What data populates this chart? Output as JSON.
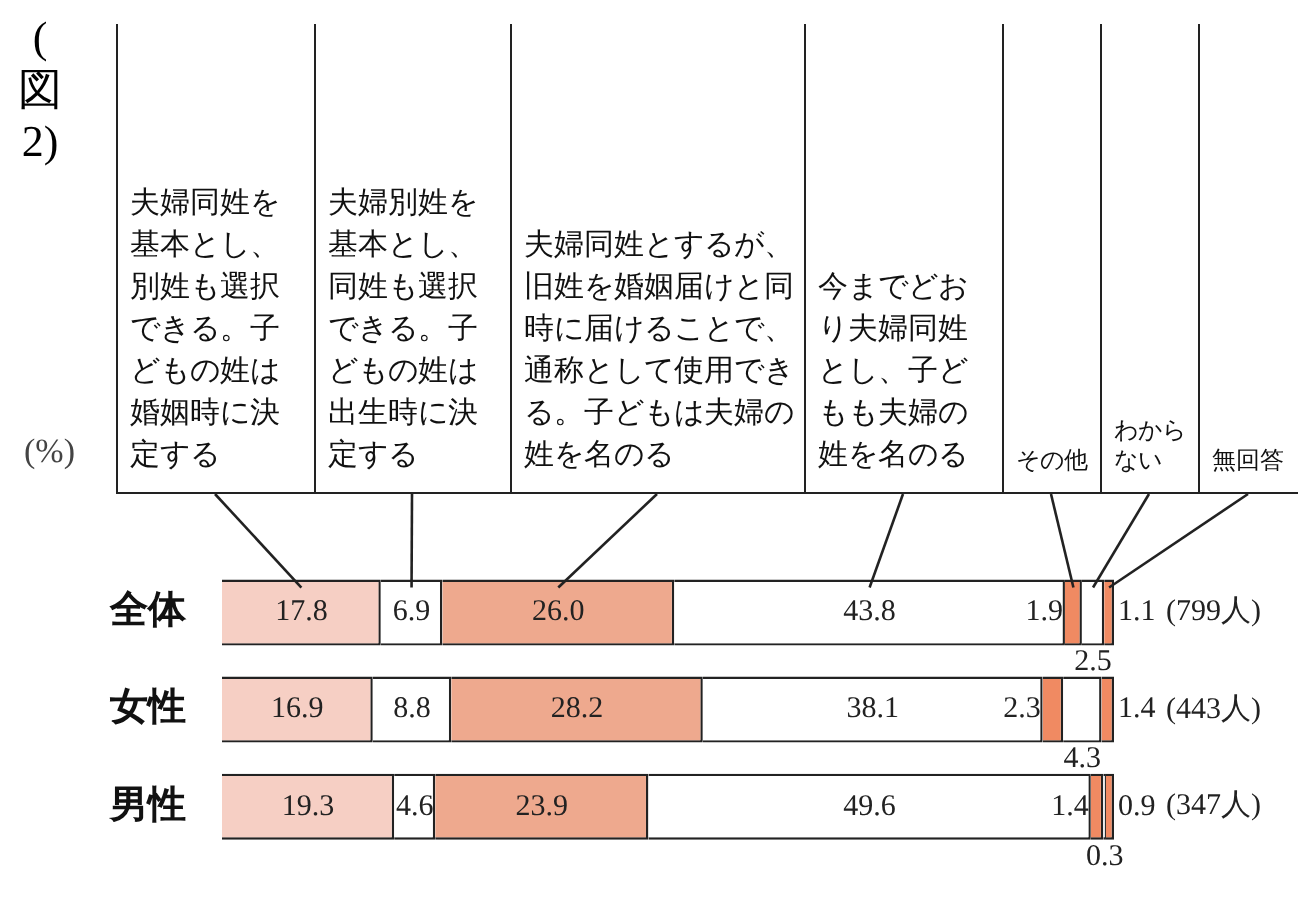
{
  "chart_data": {
    "type": "bar",
    "orientation": "horizontal",
    "stacked": true,
    "title": "(図2)",
    "categories": [
      "全体",
      "女性",
      "男性"
    ],
    "series": [
      {
        "name": "夫婦同姓を基本とし、別姓も選択できる。子どもの姓は婚姻時に決定する",
        "color": "#f6cfc4",
        "values": [
          17.8,
          16.9,
          19.3
        ],
        "value_labels": [
          "17.8",
          "16.9",
          "19.3"
        ]
      },
      {
        "name": "夫婦別姓を基本とし、同姓も選択できる。子どもの姓は出生時に決定する",
        "color": "#ffffff",
        "values": [
          6.9,
          8.8,
          4.6
        ],
        "value_labels": [
          "6.9",
          "8.8",
          "4.6"
        ]
      },
      {
        "name": "夫婦同姓とするが、旧姓を婚姻届けと同時に届けることで、通称として使用できる。子どもは夫婦の姓を名のる",
        "color": "#eea98e",
        "values": [
          26.0,
          28.2,
          23.9
        ],
        "value_labels": [
          "26.0",
          "28.2",
          "23.9"
        ]
      },
      {
        "name": "今までどおり夫婦同姓とし、子どもも夫婦の姓を名のる",
        "color": "#ffffff",
        "values": [
          43.8,
          38.1,
          49.6
        ],
        "value_labels": [
          "43.8",
          "38.1",
          "49.6"
        ]
      },
      {
        "name": "その他",
        "color": "#f08a62",
        "values": [
          1.9,
          2.3,
          1.4
        ],
        "value_labels": [
          "1.9",
          "2.3",
          "1.4"
        ]
      },
      {
        "name": "わからない",
        "color": "#ffffff",
        "values": [
          2.5,
          4.3,
          0.3
        ],
        "value_labels": [
          "2.5",
          "4.3",
          "0.3"
        ]
      },
      {
        "name": "無回答",
        "color": "#f08a62",
        "values": [
          1.1,
          1.4,
          0.9
        ],
        "value_labels": [
          "1.1",
          "1.4",
          "0.9"
        ]
      }
    ],
    "xlim": [
      0,
      100
    ],
    "data_labels": true,
    "annotations": [
      "(%)",
      "(799人)",
      "(443人)",
      "(347人)"
    ]
  }
}
